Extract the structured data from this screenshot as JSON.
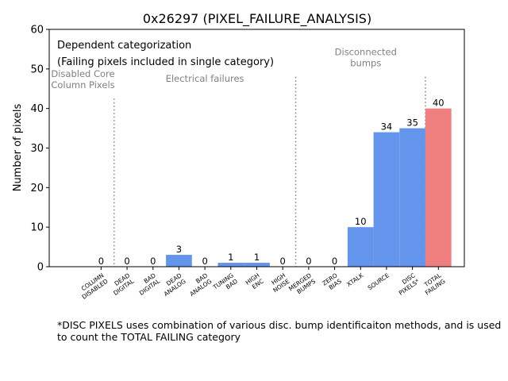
{
  "chart_data": {
    "type": "bar",
    "title": "0x26297 (PIXEL_FAILURE_ANALYSIS)",
    "xlabel": "",
    "ylabel": "Number of pixels",
    "ylim": [
      0,
      60
    ],
    "xlim": [
      -2,
      14
    ],
    "yticks": [
      0,
      10,
      20,
      30,
      40,
      50,
      60
    ],
    "categories": [
      "COLUMN\nDISABLED",
      "DEAD\nDIGITAL",
      "BAD\nDIGITAL",
      "DEAD\nANALOG",
      "BAD\nANALOG",
      "TUNING\nBAD",
      "HIGH\nENC",
      "HIGH\nNOISE",
      "MERGED\nBUMPS",
      "ZERO\nBIAS",
      "XTALK",
      "SOURCE",
      "DISC\nPIXELS*",
      "TOTAL\nFAILING"
    ],
    "values": [
      0,
      0,
      0,
      3,
      0,
      1,
      1,
      0,
      0,
      0,
      10,
      34,
      35,
      40
    ],
    "bar_colors": [
      "#6495ed",
      "#6495ed",
      "#6495ed",
      "#6495ed",
      "#6495ed",
      "#6495ed",
      "#6495ed",
      "#6495ed",
      "#6495ed",
      "#6495ed",
      "#6495ed",
      "#6495ed",
      "#6495ed",
      "#f08080"
    ],
    "separators_at": [
      0.5,
      7.5,
      12.5
    ],
    "group_labels": [
      {
        "text": "Disabled Core\nColumn Pixels",
        "x": -0.7,
        "y": 48
      },
      {
        "text": "Electrical failures",
        "x": 4.0,
        "y": 46.8
      },
      {
        "text": "Disconnected\nbumps",
        "x": 10.2,
        "y": 53.5
      }
    ],
    "legend_text": [
      "Dependent categorization",
      "(Failing pixels included in single category)"
    ],
    "legend_placement": "top-left",
    "annotation_color": "#808080"
  },
  "footnote": "*DISC PIXELS uses combination of various disc. bump identificaiton methods, and is used\nto count the TOTAL FAILING category"
}
